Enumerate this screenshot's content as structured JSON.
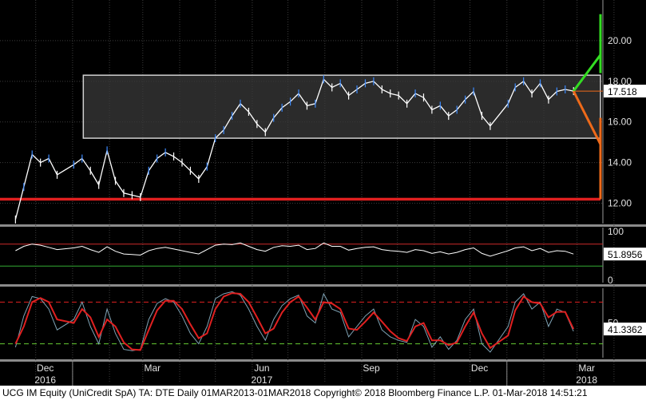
{
  "footer": {
    "text": "UCG IM Equity (UniCredit SpA) TA: DTE  Daily 01MAR2013-01MAR2018  Copyright© 2018 Bloomberg Finance L.P.  01-Mar-2018 14:51:21"
  },
  "colors": {
    "background": "#000000",
    "price_line": "#ffffff",
    "price_up_accent": "#3d8bff",
    "channel_fill": "#3a3a3a",
    "channel_border": "#cfcfcf",
    "support_line": "#e02020",
    "bull_path": "#33dd22",
    "bear_path": "#ee6a1a",
    "rsi_line": "#ffffff",
    "rsi_bands": "#cc2a2a",
    "rsi_midband": "#33aa33",
    "stoch_fast": "#7fa3b5",
    "stoch_slow": "#e02020",
    "stoch_upper": "#e02020",
    "stoch_lower": "#66cc33"
  },
  "chart_data": [
    {
      "type": "line",
      "panel": "price",
      "ylim": [
        11.0,
        22.0
      ],
      "y_ticks": [
        "20.00",
        "18.00",
        "16.00",
        "14.00",
        "12.00"
      ],
      "x_labels": [
        "Dec",
        "Mar",
        "Jun",
        "Sep",
        "Dec",
        "Mar"
      ],
      "x_year_labels": [
        "2016",
        "2017",
        "2018"
      ],
      "last_value": "17.518",
      "series": [
        {
          "x": [
            "2016-11-14",
            "2016-11-21",
            "2016-11-28",
            "2016-12-05",
            "2016-12-12",
            "2016-12-19",
            "2017-01-02",
            "2017-01-09",
            "2017-01-16",
            "2017-01-23",
            "2017-01-30",
            "2017-02-06",
            "2017-02-13",
            "2017-02-20",
            "2017-02-27",
            "2017-03-06",
            "2017-03-13",
            "2017-03-20",
            "2017-03-27",
            "2017-04-03",
            "2017-04-10",
            "2017-04-17",
            "2017-04-24",
            "2017-05-01",
            "2017-05-08",
            "2017-05-15",
            "2017-05-22",
            "2017-05-29",
            "2017-06-05",
            "2017-06-12",
            "2017-06-19",
            "2017-06-26",
            "2017-07-03",
            "2017-07-10",
            "2017-07-17",
            "2017-07-24",
            "2017-07-31",
            "2017-08-07",
            "2017-08-14",
            "2017-08-21",
            "2017-08-28",
            "2017-09-04",
            "2017-09-11",
            "2017-09-18",
            "2017-09-25",
            "2017-10-02",
            "2017-10-09",
            "2017-10-16",
            "2017-10-23",
            "2017-10-30",
            "2017-11-06",
            "2017-11-13",
            "2017-11-20",
            "2017-11-27",
            "2017-12-04",
            "2017-12-11",
            "2017-12-18",
            "2018-01-02",
            "2018-01-08",
            "2018-01-15",
            "2018-01-22",
            "2018-01-29",
            "2018-02-05",
            "2018-02-12",
            "2018-02-19",
            "2018-02-26"
          ],
          "y": [
            11.2,
            12.8,
            14.4,
            14.0,
            14.2,
            13.4,
            13.9,
            14.2,
            13.6,
            12.9,
            14.6,
            13.1,
            12.5,
            12.4,
            12.3,
            13.6,
            14.2,
            14.5,
            14.3,
            14.0,
            13.6,
            13.2,
            13.8,
            15.2,
            15.6,
            16.3,
            16.9,
            16.5,
            15.9,
            15.5,
            16.2,
            16.7,
            17.0,
            17.4,
            16.8,
            16.9,
            18.1,
            17.7,
            17.9,
            17.3,
            17.6,
            17.9,
            18.0,
            17.6,
            17.4,
            17.3,
            16.9,
            17.4,
            17.2,
            16.6,
            16.8,
            16.3,
            16.6,
            17.1,
            17.5,
            16.3,
            15.8,
            16.9,
            17.7,
            18.0,
            17.4,
            17.9,
            17.1,
            17.5,
            17.6,
            17.518
          ],
          "name": ""
        }
      ],
      "annotations": {
        "channel_upper": 18.3,
        "channel_lower": 15.2,
        "support": 12.2,
        "reference_level": 17.518,
        "bull_path": [
          17.518,
          19.3,
          18.4,
          21.3
        ],
        "bear_path": [
          17.518,
          14.9,
          16.2,
          12.2
        ]
      }
    },
    {
      "type": "line",
      "panel": "rsi",
      "ylim": [
        0,
        100
      ],
      "y_ticks": [
        "100",
        "0"
      ],
      "bands": [
        70,
        30
      ],
      "last_value": "51.8956",
      "series": [
        {
          "values": [
            58,
            66,
            70,
            68,
            64,
            60,
            63,
            66,
            60,
            55,
            65,
            57,
            52,
            51,
            50,
            58,
            62,
            64,
            61,
            58,
            55,
            52,
            60,
            68,
            70,
            69,
            72,
            66,
            60,
            57,
            64,
            67,
            66,
            68,
            60,
            62,
            72,
            66,
            66,
            59,
            62,
            64,
            65,
            60,
            58,
            57,
            55,
            60,
            58,
            53,
            56,
            52,
            55,
            60,
            63,
            53,
            48,
            58,
            63,
            65,
            58,
            62,
            55,
            58,
            57,
            51.9
          ],
          "name": ""
        }
      ]
    },
    {
      "type": "line",
      "panel": "stochastic",
      "ylim": [
        0,
        100
      ],
      "y_ticks": [
        "50"
      ],
      "bands": [
        80,
        20
      ],
      "last_value": "41.3362",
      "series": [
        {
          "name": "",
          "values": [
            15,
            60,
            88,
            85,
            70,
            40,
            55,
            80,
            45,
            20,
            70,
            35,
            12,
            10,
            12,
            55,
            78,
            85,
            80,
            60,
            35,
            20,
            45,
            85,
            92,
            95,
            90,
            70,
            45,
            25,
            55,
            75,
            85,
            90,
            60,
            50,
            92,
            70,
            65,
            30,
            45,
            60,
            70,
            40,
            30,
            25,
            22,
            55,
            45,
            15,
            30,
            12,
            25,
            55,
            70,
            20,
            8,
            45,
            80,
            92,
            70,
            80,
            45,
            70,
            65,
            38
          ]
        },
        {
          "name": "",
          "values": [
            20,
            45,
            80,
            86,
            80,
            55,
            50,
            70,
            58,
            30,
            55,
            45,
            22,
            12,
            11,
            40,
            68,
            82,
            82,
            70,
            48,
            28,
            35,
            70,
            88,
            93,
            92,
            80,
            58,
            35,
            42,
            65,
            80,
            88,
            72,
            55,
            80,
            78,
            70,
            42,
            40,
            52,
            65,
            52,
            38,
            28,
            24,
            45,
            50,
            25,
            25,
            18,
            22,
            45,
            65,
            35,
            14,
            32,
            68,
            88,
            80,
            78,
            58,
            66,
            66,
            41.3
          ]
        }
      ]
    }
  ]
}
